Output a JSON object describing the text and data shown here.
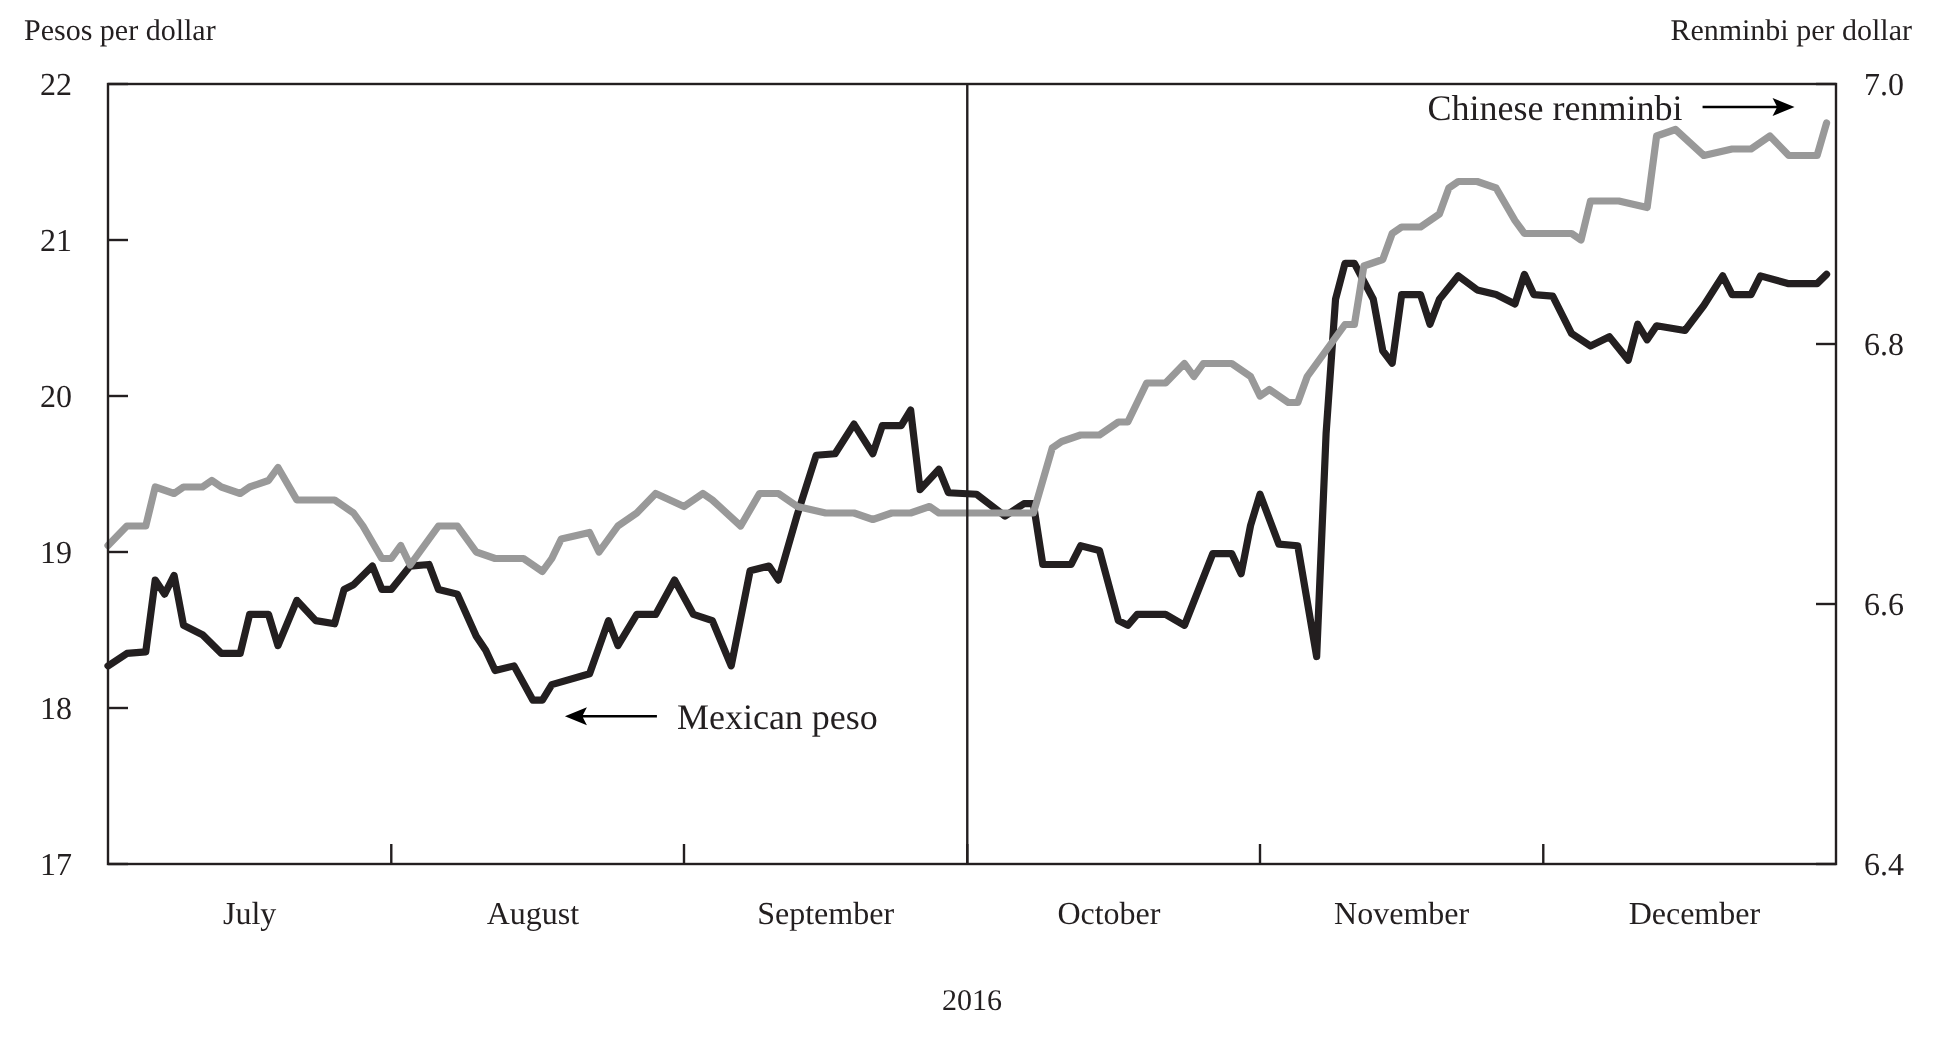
{
  "chart_data": {
    "type": "line",
    "xlabel": "2016",
    "ylabel": "Pesos per dollar",
    "y2label": "Renminbi per dollar",
    "xlim": [
      "2016-07-02",
      "2017-01-01"
    ],
    "xticks": [
      {
        "value": "2016-07-17",
        "label": "July"
      },
      {
        "value": "2016-08-01",
        "label": null
      },
      {
        "value": "2016-08-16",
        "label": "August"
      },
      {
        "value": "2016-09-01",
        "label": null
      },
      {
        "value": "2016-09-16",
        "label": "September"
      },
      {
        "value": "2016-10-01",
        "label": null
      },
      {
        "value": "2016-10-16",
        "label": "October"
      },
      {
        "value": "2016-11-01",
        "label": null
      },
      {
        "value": "2016-11-16",
        "label": "November"
      },
      {
        "value": "2016-12-01",
        "label": null
      },
      {
        "value": "2016-12-17",
        "label": "December"
      }
    ],
    "ylim": [
      17,
      22
    ],
    "yticks": [
      17,
      18,
      19,
      20,
      21,
      22
    ],
    "y2lim": [
      6.4,
      7.0
    ],
    "y2ticks": [
      6.4,
      6.6,
      6.8,
      {
        "value": 7.0,
        "label": "7.0"
      }
    ],
    "grid": false,
    "legend": false,
    "line_style": "solid",
    "ref_lines": [
      {
        "axis": "x",
        "value": "2016-10-01",
        "color": "#231f20"
      }
    ],
    "series": [
      {
        "name": "Mexican peso",
        "color": "#231f20",
        "x": [
          "2016-07-02",
          "2016-07-04",
          "2016-07-06",
          "2016-07-07",
          "2016-07-08",
          "2016-07-09",
          "2016-07-10",
          "2016-07-12",
          "2016-07-14",
          "2016-07-16",
          "2016-07-17",
          "2016-07-19",
          "2016-07-20",
          "2016-07-22",
          "2016-07-24",
          "2016-07-26",
          "2016-07-27",
          "2016-07-28",
          "2016-07-30",
          "2016-07-31",
          "2016-08-01",
          "2016-08-03",
          "2016-08-05",
          "2016-08-06",
          "2016-08-08",
          "2016-08-10",
          "2016-08-11",
          "2016-08-12",
          "2016-08-14",
          "2016-08-16",
          "2016-08-17",
          "2016-08-18",
          "2016-08-22",
          "2016-08-24",
          "2016-08-25",
          "2016-08-27",
          "2016-08-29",
          "2016-08-31",
          "2016-09-02",
          "2016-09-04",
          "2016-09-06",
          "2016-09-08",
          "2016-09-10",
          "2016-09-11",
          "2016-09-13",
          "2016-09-15",
          "2016-09-17",
          "2016-09-19",
          "2016-09-21",
          "2016-09-22",
          "2016-09-24",
          "2016-09-25",
          "2016-09-26",
          "2016-09-28",
          "2016-09-29",
          "2016-10-02",
          "2016-10-05",
          "2016-10-07",
          "2016-10-08",
          "2016-10-09",
          "2016-10-12",
          "2016-10-13",
          "2016-10-15",
          "2016-10-17",
          "2016-10-18",
          "2016-10-19",
          "2016-10-22",
          "2016-10-24",
          "2016-10-27",
          "2016-10-29",
          "2016-10-30",
          "2016-10-31",
          "2016-11-01",
          "2016-11-03",
          "2016-11-05",
          "2016-11-07",
          "2016-11-08",
          "2016-11-09",
          "2016-11-10",
          "2016-11-11",
          "2016-11-13",
          "2016-11-14",
          "2016-11-15",
          "2016-11-16",
          "2016-11-18",
          "2016-11-19",
          "2016-11-20",
          "2016-11-22",
          "2016-11-24",
          "2016-11-26",
          "2016-11-28",
          "2016-11-29",
          "2016-11-30",
          "2016-12-02",
          "2016-12-04",
          "2016-12-06",
          "2016-12-08",
          "2016-12-10",
          "2016-12-11",
          "2016-12-12",
          "2016-12-13",
          "2016-12-16",
          "2016-12-18",
          "2016-12-20",
          "2016-12-21",
          "2016-12-23",
          "2016-12-24",
          "2016-12-27",
          "2016-12-30",
          "2016-12-31"
        ],
        "values": [
          18.27,
          18.35,
          18.36,
          18.82,
          18.73,
          18.85,
          18.53,
          18.47,
          18.35,
          18.35,
          18.6,
          18.6,
          18.4,
          18.69,
          18.56,
          18.54,
          18.76,
          18.79,
          18.91,
          18.76,
          18.76,
          18.91,
          18.92,
          18.76,
          18.73,
          18.46,
          18.37,
          18.24,
          18.27,
          18.05,
          18.05,
          18.15,
          18.22,
          18.56,
          18.4,
          18.6,
          18.6,
          18.82,
          18.6,
          18.56,
          18.27,
          18.88,
          18.91,
          18.82,
          19.24,
          19.62,
          19.63,
          19.82,
          19.63,
          19.81,
          19.81,
          19.91,
          19.4,
          19.53,
          19.38,
          19.37,
          19.23,
          19.31,
          19.31,
          18.92,
          18.92,
          19.04,
          19.01,
          18.56,
          18.53,
          18.6,
          18.6,
          18.53,
          18.99,
          18.99,
          18.86,
          19.17,
          19.37,
          19.05,
          19.04,
          18.33,
          19.76,
          20.62,
          20.85,
          20.85,
          20.62,
          20.29,
          20.21,
          20.65,
          20.65,
          20.46,
          20.62,
          20.77,
          20.68,
          20.65,
          20.59,
          20.78,
          20.65,
          20.64,
          20.4,
          20.32,
          20.38,
          20.23,
          20.46,
          20.36,
          20.45,
          20.42,
          20.58,
          20.77,
          20.65,
          20.65,
          20.77,
          20.72,
          20.72,
          20.78
        ]
      },
      {
        "name": "Chinese renminbi",
        "color": "#999999",
        "axis": "y2",
        "x": [
          "2016-07-02",
          "2016-07-04",
          "2016-07-06",
          "2016-07-07",
          "2016-07-09",
          "2016-07-10",
          "2016-07-12",
          "2016-07-13",
          "2016-07-14",
          "2016-07-16",
          "2016-07-17",
          "2016-07-19",
          "2016-07-20",
          "2016-07-22",
          "2016-07-23",
          "2016-07-26",
          "2016-07-28",
          "2016-07-29",
          "2016-07-31",
          "2016-08-01",
          "2016-08-02",
          "2016-08-03",
          "2016-08-04",
          "2016-08-06",
          "2016-08-08",
          "2016-08-10",
          "2016-08-12",
          "2016-08-15",
          "2016-08-16",
          "2016-08-17",
          "2016-08-18",
          "2016-08-19",
          "2016-08-22",
          "2016-08-23",
          "2016-08-25",
          "2016-08-27",
          "2016-08-29",
          "2016-09-01",
          "2016-09-03",
          "2016-09-04",
          "2016-09-07",
          "2016-09-09",
          "2016-09-11",
          "2016-09-13",
          "2016-09-16",
          "2016-09-19",
          "2016-09-21",
          "2016-09-23",
          "2016-09-25",
          "2016-09-27",
          "2016-09-28",
          "2016-10-02",
          "2016-10-04",
          "2016-10-08",
          "2016-10-10",
          "2016-10-11",
          "2016-10-13",
          "2016-10-15",
          "2016-10-17",
          "2016-10-18",
          "2016-10-20",
          "2016-10-22",
          "2016-10-24",
          "2016-10-25",
          "2016-10-26",
          "2016-10-29",
          "2016-10-31",
          "2016-11-01",
          "2016-11-02",
          "2016-11-04",
          "2016-11-05",
          "2016-11-06",
          "2016-11-08",
          "2016-11-10",
          "2016-11-11",
          "2016-11-12",
          "2016-11-14",
          "2016-11-15",
          "2016-11-16",
          "2016-11-18",
          "2016-11-20",
          "2016-11-21",
          "2016-11-22",
          "2016-11-24",
          "2016-11-26",
          "2016-11-28",
          "2016-11-29",
          "2016-12-02",
          "2016-12-04",
          "2016-12-05",
          "2016-12-06",
          "2016-12-09",
          "2016-12-12",
          "2016-12-13",
          "2016-12-15",
          "2016-12-18",
          "2016-12-21",
          "2016-12-23",
          "2016-12-25",
          "2016-12-27",
          "2016-12-30",
          "2016-12-31"
        ],
        "values": [
          6.645,
          6.66,
          6.66,
          6.69,
          6.685,
          6.69,
          6.69,
          6.695,
          6.69,
          6.685,
          6.69,
          6.695,
          6.705,
          6.68,
          6.68,
          6.68,
          6.67,
          6.66,
          6.635,
          6.635,
          6.645,
          6.63,
          6.64,
          6.66,
          6.66,
          6.64,
          6.635,
          6.635,
          6.63,
          6.625,
          6.635,
          6.65,
          6.655,
          6.64,
          6.66,
          6.67,
          6.685,
          6.675,
          6.685,
          6.68,
          6.66,
          6.685,
          6.685,
          6.675,
          6.67,
          6.67,
          6.665,
          6.67,
          6.67,
          6.675,
          6.67,
          6.67,
          6.67,
          6.67,
          6.72,
          6.725,
          6.73,
          6.73,
          6.74,
          6.74,
          6.77,
          6.77,
          6.785,
          6.775,
          6.785,
          6.785,
          6.775,
          6.76,
          6.765,
          6.755,
          6.755,
          6.775,
          6.795,
          6.815,
          6.815,
          6.86,
          6.865,
          6.885,
          6.89,
          6.89,
          6.9,
          6.92,
          6.925,
          6.925,
          6.92,
          6.895,
          6.885,
          6.885,
          6.885,
          6.88,
          6.91,
          6.91,
          6.905,
          6.96,
          6.965,
          6.945,
          6.95,
          6.95,
          6.96,
          6.945,
          6.945,
          6.97
        ]
      }
    ]
  }
}
